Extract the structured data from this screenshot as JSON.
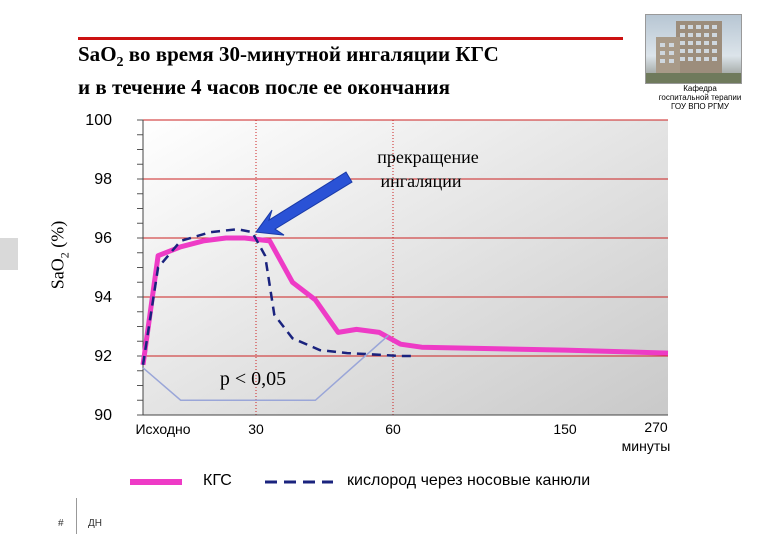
{
  "slide": {
    "title_line1_pre": "Sa",
    "title_line1_sub_pre": "O",
    "title_line1_sub": "2",
    "title_line1_post": " во время 30-минутной ингаляции КГС",
    "title_line2": "и в течение 4 часов после ее окончания",
    "dept_line1": "Кафедра",
    "dept_line2": "госпитальной терапии",
    "dept_line3": "ГОУ ВПО РГМУ",
    "footer_left": "#",
    "footer_right": "ДН",
    "colors": {
      "title_rule": "#cc1111",
      "kgs": "#ee3bc6",
      "oxygen": "#1a237e",
      "arrow": "#2a52d6",
      "pvalue_line": "#9aa6d8"
    }
  },
  "chart_data": {
    "type": "line",
    "ylabel_pre": "Sa",
    "ylabel_sub": "O",
    "ylabel_sub2": "2",
    "ylabel_post": " (%)",
    "ylim": [
      90,
      100
    ],
    "yticks": [
      "100",
      "98",
      "96",
      "94",
      "92",
      "90"
    ],
    "yvalues": [
      100,
      98,
      96,
      94,
      92,
      90
    ],
    "xticks": [
      {
        "label": "Исходно",
        "x": 0
      },
      {
        "label": "30",
        "x": 30
      },
      {
        "label": "60",
        "x": 60
      },
      {
        "label": "150",
        "x": 150
      },
      {
        "label": "270",
        "x": 270
      }
    ],
    "xunit": "минуты",
    "vlines": [
      30,
      60
    ],
    "series": [
      {
        "name": "КГС",
        "style": "solid",
        "points": [
          [
            0,
            91.7
          ],
          [
            4,
            95.4
          ],
          [
            10,
            95.7
          ],
          [
            16,
            95.9
          ],
          [
            22,
            96.0
          ],
          [
            27,
            96.0
          ],
          [
            33,
            95.9
          ],
          [
            38,
            94.5
          ],
          [
            43,
            93.9
          ],
          [
            48,
            92.8
          ],
          [
            52,
            92.9
          ],
          [
            57,
            92.8
          ],
          [
            64,
            92.4
          ],
          [
            75,
            92.3
          ],
          [
            150,
            92.2
          ],
          [
            270,
            92.1
          ]
        ]
      },
      {
        "name": "кислород через носовые канюли",
        "style": "dashed",
        "points": [
          [
            0,
            91.7
          ],
          [
            4,
            95.0
          ],
          [
            10,
            95.9
          ],
          [
            18,
            96.2
          ],
          [
            25,
            96.3
          ],
          [
            29,
            96.2
          ],
          [
            32,
            95.4
          ],
          [
            34,
            93.4
          ],
          [
            38,
            92.6
          ],
          [
            44,
            92.2
          ],
          [
            50,
            92.1
          ],
          [
            56,
            92.05
          ],
          [
            64,
            92.0
          ],
          [
            72,
            92.0
          ]
        ]
      }
    ],
    "annotations": {
      "stop_label_line1": "прекращение",
      "stop_label_line2": "ингаляции",
      "stop_point": [
        30,
        96.2
      ],
      "pvalue": "p < 0,05",
      "pvalue_bracket": [
        [
          0,
          91.6
        ],
        [
          10,
          90.5
        ],
        [
          43,
          90.5
        ],
        [
          59,
          92.7
        ]
      ]
    }
  }
}
